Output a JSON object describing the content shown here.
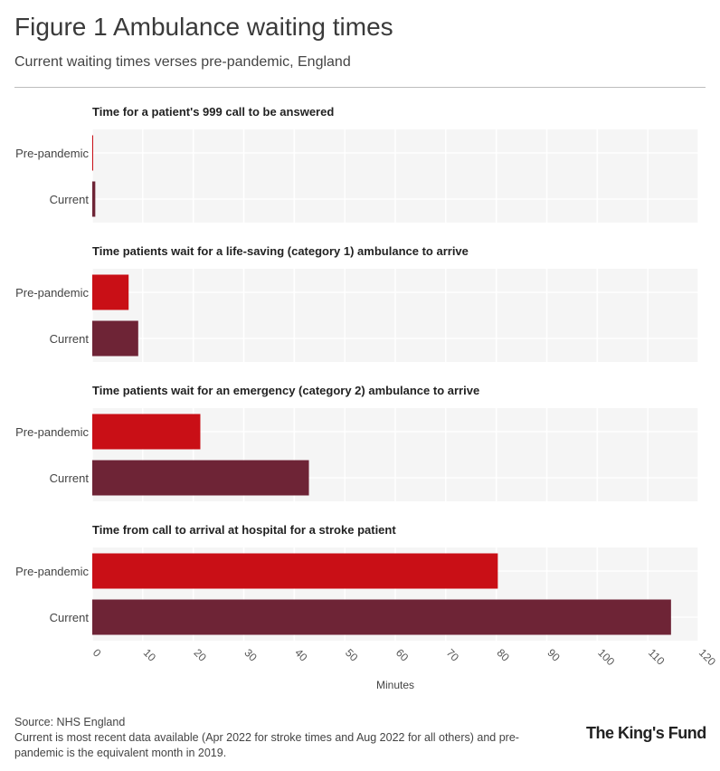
{
  "title": "Figure 1 Ambulance waiting times",
  "subtitle": "Current waiting times verses pre-pandemic, England",
  "footer": {
    "source": "Source: NHS England",
    "note": "Current is most recent data available (Apr 2022 for stroke times and Aug 2022 for all others) and pre-pandemic is the equivalent month in 2019."
  },
  "logo": "The King's Fund",
  "colors": {
    "pre_pandemic": "#c90f16",
    "current": "#6e2436",
    "panel_bg": "#f5f5f5"
  },
  "chart_data": {
    "type": "bar",
    "orientation": "horizontal",
    "categories": [
      "Pre-pandemic",
      "Current"
    ],
    "xlabel": "Minutes",
    "xlim": [
      0,
      120
    ],
    "xticks": [
      0,
      10,
      20,
      30,
      40,
      50,
      60,
      70,
      80,
      90,
      100,
      110,
      120
    ],
    "grid": true,
    "panels": [
      {
        "title": "Time for a patient's 999 call to be answered",
        "values": [
          0.1,
          0.6
        ]
      },
      {
        "title": "Time patients wait for a life-saving (category 1) ambulance to arrive",
        "values": [
          7.2,
          9.1
        ]
      },
      {
        "title": "Time patients wait for an emergency (category 2) ambulance to arrive",
        "values": [
          21.4,
          42.9
        ]
      },
      {
        "title": "Time from call to arrival at hospital for a stroke patient",
        "values": [
          80.3,
          114.6
        ]
      }
    ]
  }
}
